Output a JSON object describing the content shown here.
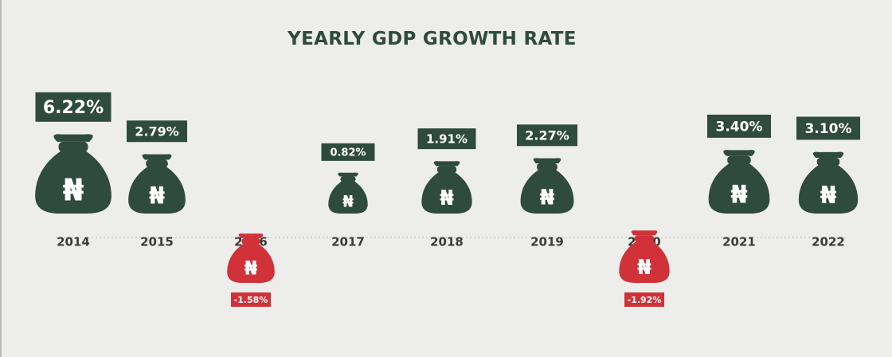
{
  "chart_data": {
    "type": "bar",
    "title": "YEARLY GDP GROWTH RATE",
    "categories": [
      "2014",
      "2015",
      "2016",
      "2017",
      "2018",
      "2019",
      "2020",
      "2021",
      "2022"
    ],
    "values": [
      6.22,
      2.79,
      -1.58,
      0.82,
      1.91,
      2.27,
      -1.92,
      3.4,
      3.1
    ],
    "value_labels": [
      "6.22%",
      "2.79%",
      "-1.58%",
      "0.82%",
      "1.91%",
      "2.27%",
      "-1.92%",
      "3.40%",
      "3.10%"
    ],
    "icon": "naira-money-bag-icon",
    "currency_symbol": "₦",
    "colors": {
      "positive": "#2f4a3e",
      "negative": "#d1323a",
      "background": "#ededeb",
      "label_text": "#ffffff",
      "year_text": "#3a3a3a",
      "baseline": "#bdbdbd"
    },
    "grid": false,
    "legend": "none"
  }
}
